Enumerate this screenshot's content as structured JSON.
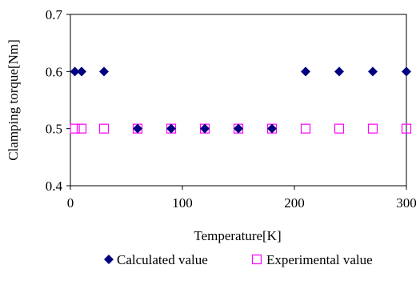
{
  "chart_data": {
    "type": "scatter",
    "title": "",
    "xlabel": "Temperature[K]",
    "ylabel": "Clamping torque[Nm]",
    "xlim": [
      0,
      300
    ],
    "ylim": [
      0.4,
      0.7
    ],
    "x_ticks": [
      "0",
      "100",
      "200",
      "300"
    ],
    "y_ticks": [
      "0.4",
      "0.5",
      "0.6",
      "0.7"
    ],
    "grid": false,
    "legend_position": "bottom",
    "series": [
      {
        "name": "Calculated value",
        "marker": "filled-diamond",
        "color": "#000080",
        "points": [
          {
            "x": 4,
            "y": 0.6
          },
          {
            "x": 10,
            "y": 0.6
          },
          {
            "x": 30,
            "y": 0.6
          },
          {
            "x": 60,
            "y": 0.5
          },
          {
            "x": 90,
            "y": 0.5
          },
          {
            "x": 120,
            "y": 0.5
          },
          {
            "x": 150,
            "y": 0.5
          },
          {
            "x": 180,
            "y": 0.5
          },
          {
            "x": 210,
            "y": 0.6
          },
          {
            "x": 240,
            "y": 0.6
          },
          {
            "x": 270,
            "y": 0.6
          },
          {
            "x": 300,
            "y": 0.6
          }
        ]
      },
      {
        "name": "Experimental value",
        "marker": "hollow-square",
        "color": "#FF00FF",
        "points": [
          {
            "x": 4,
            "y": 0.5
          },
          {
            "x": 10,
            "y": 0.5
          },
          {
            "x": 30,
            "y": 0.5
          },
          {
            "x": 60,
            "y": 0.5
          },
          {
            "x": 90,
            "y": 0.5
          },
          {
            "x": 120,
            "y": 0.5
          },
          {
            "x": 150,
            "y": 0.5
          },
          {
            "x": 180,
            "y": 0.5
          },
          {
            "x": 210,
            "y": 0.5
          },
          {
            "x": 240,
            "y": 0.5
          },
          {
            "x": 270,
            "y": 0.5
          },
          {
            "x": 300,
            "y": 0.5
          }
        ]
      }
    ]
  }
}
